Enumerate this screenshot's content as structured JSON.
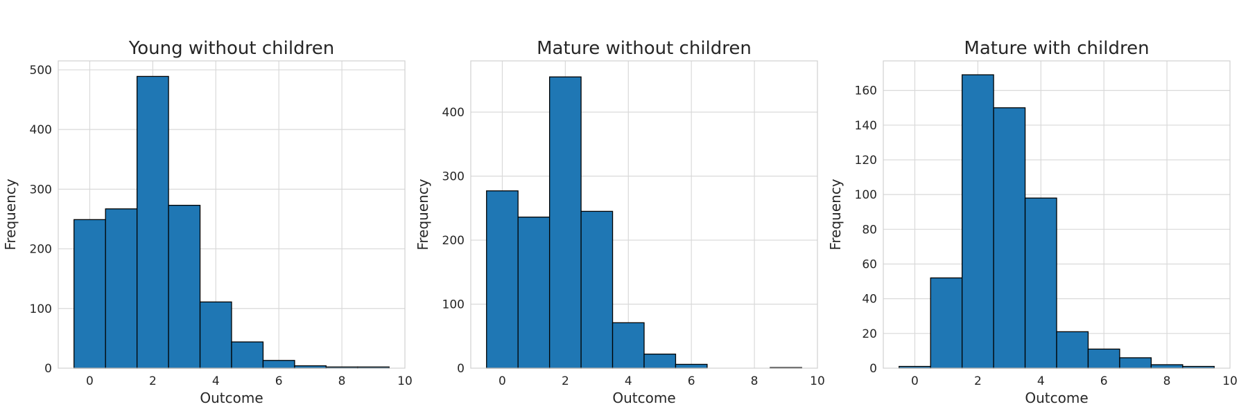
{
  "chart_data": [
    {
      "type": "bar",
      "title": "Young without children",
      "xlabel": "Outcome",
      "ylabel": "Frequency",
      "xlim": [
        -1,
        10
      ],
      "ylim": [
        0,
        515
      ],
      "xticks": [
        0,
        2,
        4,
        6,
        8,
        10
      ],
      "yticks": [
        0,
        100,
        200,
        300,
        400,
        500
      ],
      "grid": true,
      "bin_edges": [
        -0.5,
        0.5,
        1.5,
        2.5,
        3.5,
        4.5,
        5.5,
        6.5,
        7.5,
        8.5,
        9.5
      ],
      "values": [
        249,
        267,
        489,
        273,
        111,
        44,
        13,
        4,
        2,
        2
      ],
      "color": "#1f77b4"
    },
    {
      "type": "bar",
      "title": "Mature without children",
      "xlabel": "Outcome",
      "ylabel": "Frequency",
      "xlim": [
        -1,
        10
      ],
      "ylim": [
        0,
        480
      ],
      "xticks": [
        0,
        2,
        4,
        6,
        8,
        10
      ],
      "yticks": [
        0,
        100,
        200,
        300,
        400
      ],
      "grid": true,
      "bin_edges": [
        -0.5,
        0.5,
        1.5,
        2.5,
        3.5,
        4.5,
        5.5,
        6.5,
        7.5,
        8.5,
        9.5
      ],
      "values": [
        277,
        236,
        455,
        245,
        71,
        22,
        6,
        0,
        0,
        1
      ],
      "color": "#1f77b4"
    },
    {
      "type": "bar",
      "title": "Mature with children",
      "xlabel": "Outcome",
      "ylabel": "Frequency",
      "xlim": [
        -1,
        10
      ],
      "ylim": [
        0,
        177
      ],
      "xticks": [
        0,
        2,
        4,
        6,
        8,
        10
      ],
      "yticks": [
        0,
        20,
        40,
        60,
        80,
        100,
        120,
        140,
        160
      ],
      "grid": true,
      "bin_edges": [
        -0.5,
        0.5,
        1.5,
        2.5,
        3.5,
        4.5,
        5.5,
        6.5,
        7.5,
        8.5,
        9.5
      ],
      "values": [
        1,
        52,
        169,
        150,
        98,
        21,
        11,
        6,
        2,
        1
      ],
      "color": "#1f77b4"
    }
  ]
}
